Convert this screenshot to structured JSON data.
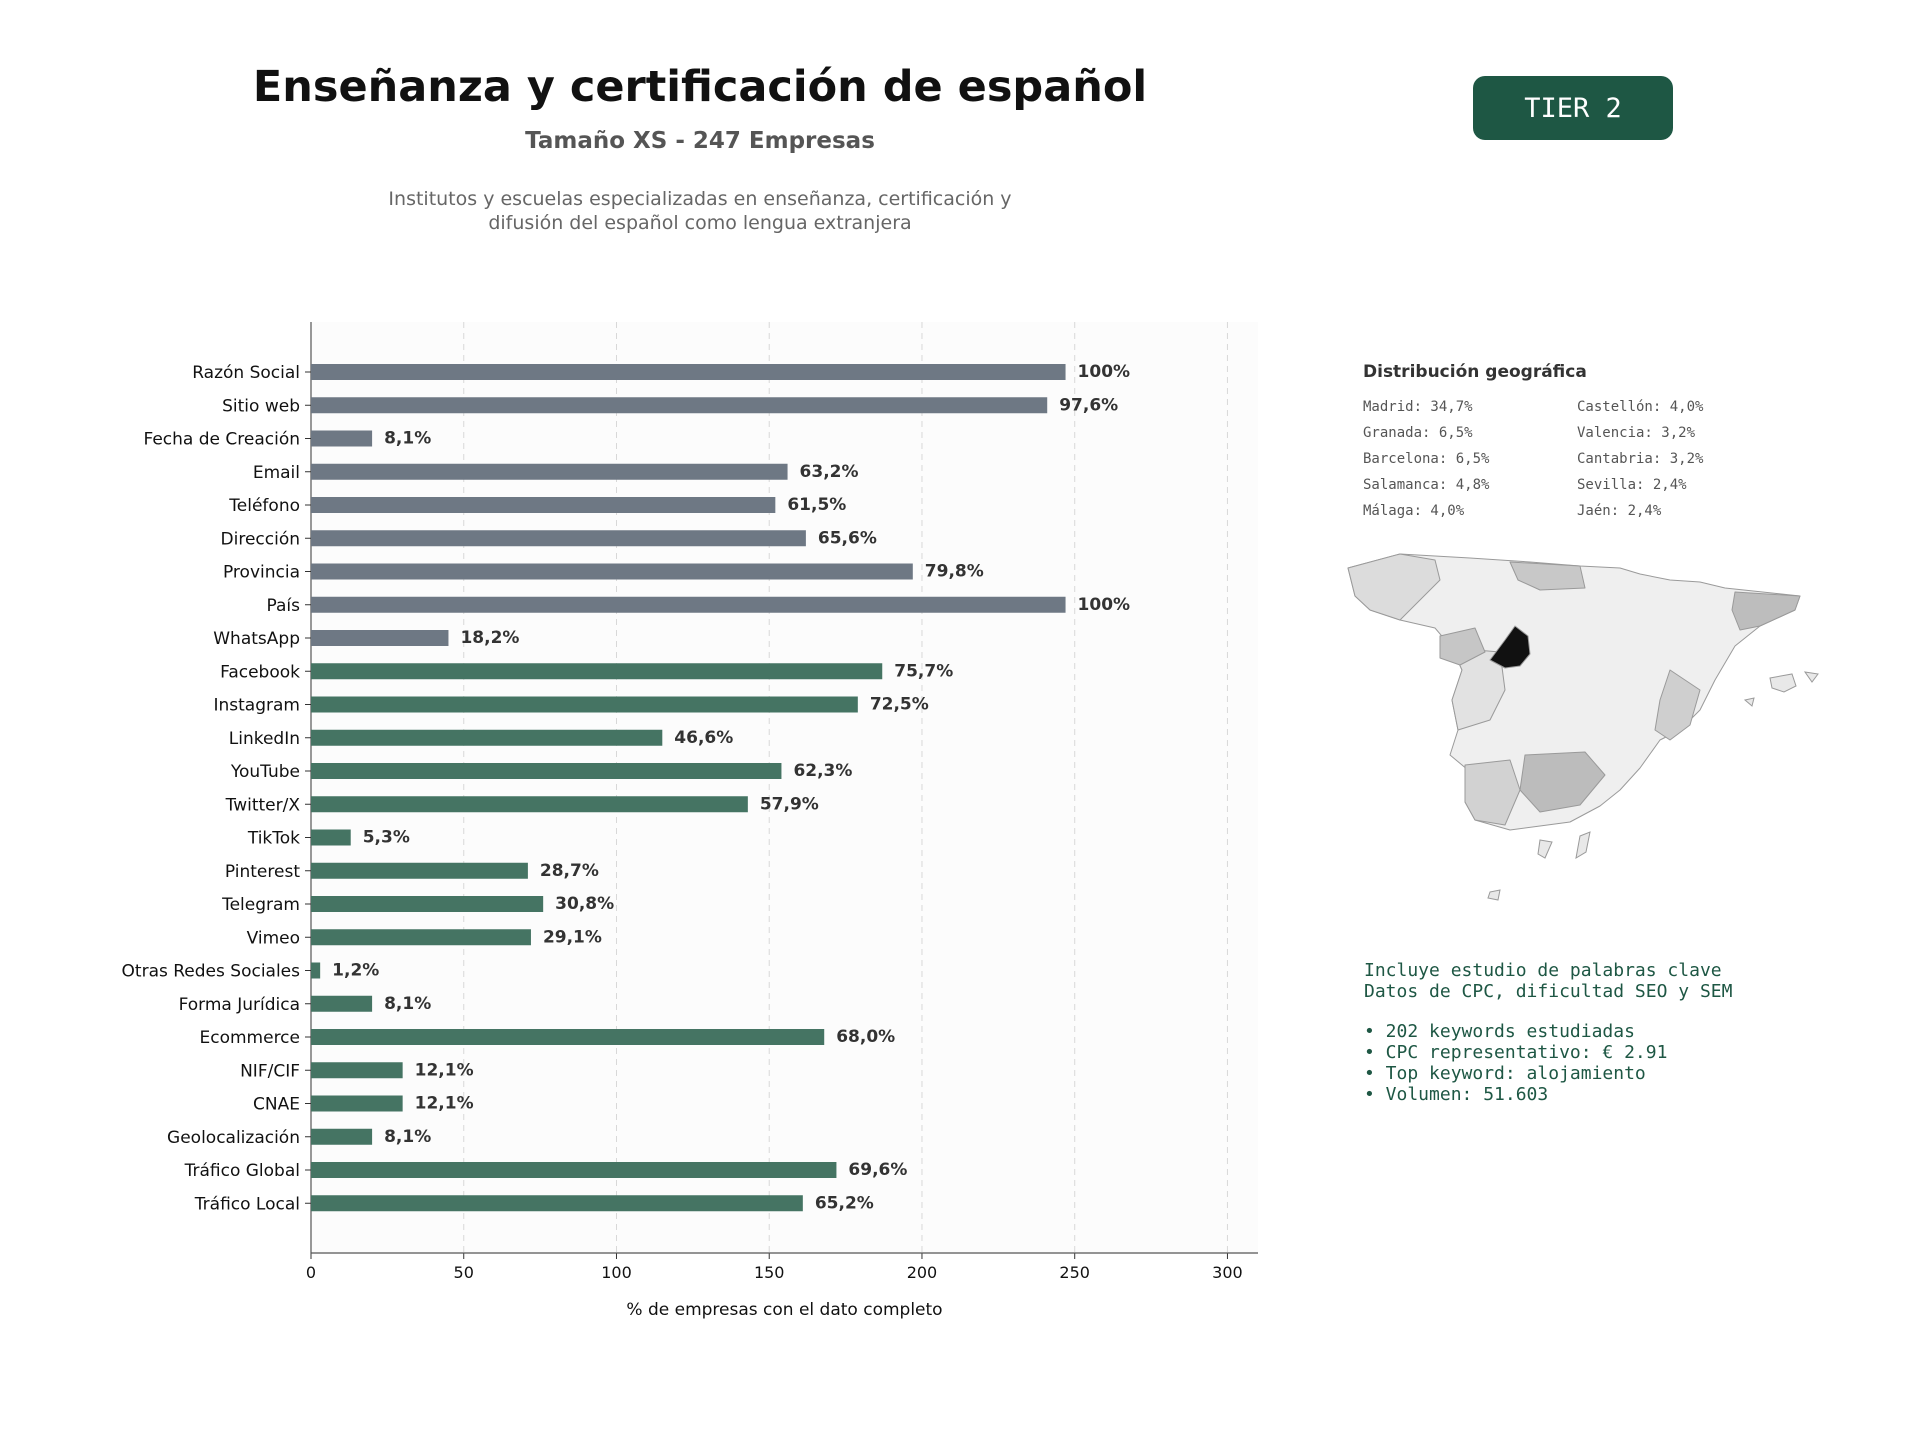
{
  "header": {
    "title": "Enseñanza y certificación de español",
    "subtitle": "Tamaño XS - 247 Empresas",
    "description_line1": "Institutos y escuelas especializadas en enseñanza, certificación y",
    "description_line2": "difusión del español como lengua extranjera",
    "tier": "TIER 2"
  },
  "chart_data": {
    "type": "bar",
    "orientation": "horizontal",
    "xlabel": "% de empresas con el dato completo",
    "ylabel": "",
    "xlim": [
      0,
      310
    ],
    "xticks": [
      0,
      50,
      100,
      150,
      200,
      250,
      300
    ],
    "grid": "vertical dashed",
    "categories": [
      "Razón Social",
      "Sitio web",
      "Fecha de Creación",
      "Email",
      "Teléfono",
      "Dirección",
      "Provincia",
      "País",
      "WhatsApp",
      "Facebook",
      "Instagram",
      "LinkedIn",
      "YouTube",
      "Twitter/X",
      "TikTok",
      "Pinterest",
      "Telegram",
      "Vimeo",
      "Otras Redes Sociales",
      "Forma Jurídica",
      "Ecommerce",
      "NIF/CIF",
      "CNAE",
      "Geolocalización",
      "Tráfico Global",
      "Tráfico Local"
    ],
    "values": [
      247,
      241,
      20,
      156,
      152,
      162,
      197,
      247,
      45,
      187,
      179,
      115,
      154,
      143,
      13,
      71,
      76,
      72,
      3,
      20,
      168,
      30,
      30,
      20,
      172,
      161
    ],
    "labels": [
      "100%",
      "97,6%",
      "8,1%",
      "63,2%",
      "61,5%",
      "65,6%",
      "79,8%",
      "100%",
      "18,2%",
      "75,7%",
      "72,5%",
      "46,6%",
      "62,3%",
      "57,9%",
      "5,3%",
      "28,7%",
      "30,8%",
      "29,1%",
      "1,2%",
      "8,1%",
      "68,0%",
      "12,1%",
      "12,1%",
      "8,1%",
      "69,6%",
      "65,2%"
    ],
    "bar_colors": [
      "#6e7884",
      "#6e7884",
      "#6e7884",
      "#6e7884",
      "#6e7884",
      "#6e7884",
      "#6e7884",
      "#6e7884",
      "#6e7884",
      "#457463",
      "#457463",
      "#457463",
      "#457463",
      "#457463",
      "#457463",
      "#457463",
      "#457463",
      "#457463",
      "#457463",
      "#457463",
      "#457463",
      "#457463",
      "#457463",
      "#457463",
      "#457463",
      "#457463"
    ]
  },
  "geo": {
    "title": "Distribución geográfica",
    "left": [
      "Madrid: 34,7%",
      "Granada: 6,5%",
      "Barcelona: 6,5%",
      "Salamanca: 4,8%",
      "Málaga: 4,0%"
    ],
    "right": [
      "Castellón: 4,0%",
      "Valencia: 3,2%",
      "Cantabria: 3,2%",
      "Sevilla: 2,4%",
      "Jaén: 2,4%"
    ]
  },
  "keywords": {
    "line1": "Incluye estudio de palabras clave",
    "line2": "Datos de CPC, dificultad SEO y SEM",
    "bullet1": "• 202 keywords estudiadas",
    "bullet2": "• CPC representativo: € 2.91",
    "bullet3": "• Top keyword: alojamiento",
    "bullet4": "• Volumen: 51.603"
  },
  "colors": {
    "badge": "#1e5744",
    "bar_contact": "#6e7884",
    "bar_social": "#457463",
    "map_highlight": "#111111"
  }
}
